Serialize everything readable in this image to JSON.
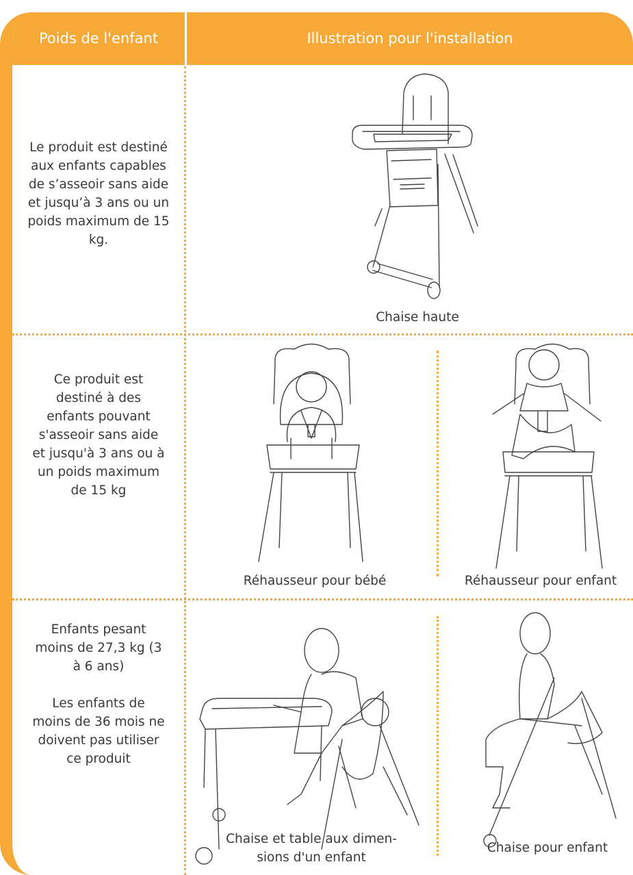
{
  "header": {
    "col1": "Poids de l'enfant",
    "col2": "Illustration pour l'installation"
  },
  "rows": [
    {
      "weight": [
        "Le produit est destiné aux enfants capables de s’asseoir sans aide et jusqu’à 3 ans ou un poids maximum de 15 kg."
      ],
      "captions": [
        [
          "Chaise haute"
        ]
      ]
    },
    {
      "weight": [
        "Ce produit est destiné à des enfants pouvant s'asseoir sans aide et jusqu'à 3 ans ou à un poids maximum de 15 kg"
      ],
      "captions": [
        [
          "Réhausseur pour bébé"
        ],
        [
          "Réhausseur pour enfant"
        ]
      ]
    },
    {
      "weight": [
        "Enfants pesant moins de 27,3 kg (3 à 6 ans)",
        "Les enfants de moins de 36 mois ne doivent pas utiliser ce produit"
      ],
      "captions": [
        [
          "Chaise et table aux dimen-",
          "sions d'un enfant"
        ],
        [
          "Chaise pour enfant"
        ]
      ]
    }
  ]
}
